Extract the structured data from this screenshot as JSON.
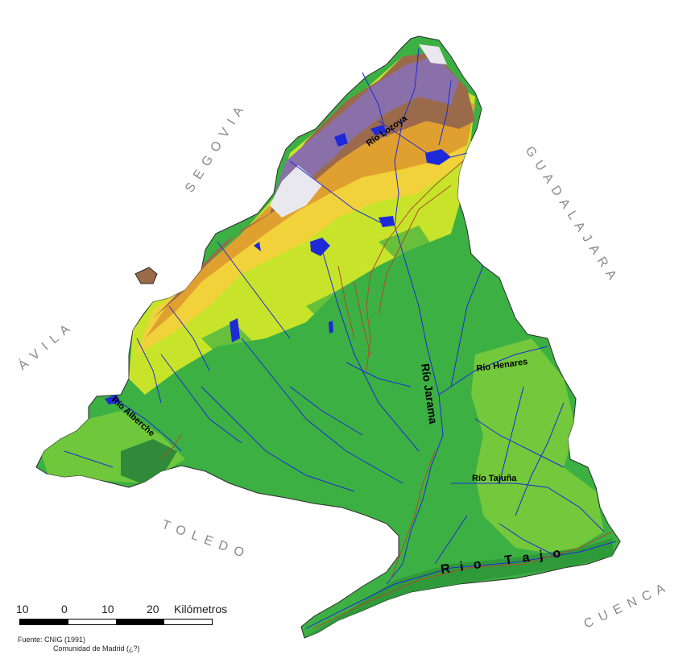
{
  "regions": {
    "segovia": "S E G O V I A",
    "guadalajara": "G U A D A L A J A R A",
    "avila": "Á V I L A",
    "toledo": "T O L E D O",
    "cuenca": "C U E N C A"
  },
  "rivers": {
    "lozoya": "Río Lozoya",
    "jarama": "Río Jarama",
    "henares": "Río Henares",
    "alberche": "Río Alberche",
    "tajuna": "Río Tajuña",
    "tajo": "R i o   T a j o"
  },
  "scale": {
    "labels": [
      "10",
      "0",
      "10",
      "20"
    ],
    "unit": "Kilómetros"
  },
  "source": {
    "line1": "Fuente: CNIG (1991)",
    "line2": "Comunidad de Madrid (¿?)"
  },
  "colors": {
    "lowland": "#3cb043",
    "midland": "#7ccd3a",
    "yellowgreen": "#c8e42a",
    "yellow": "#f2d23a",
    "orange": "#e0a030",
    "brown": "#9a6a4a",
    "purple": "#8a70a8",
    "snow": "#e8e8ee",
    "water": "#1e2ad8",
    "road": "#b04a2a"
  }
}
